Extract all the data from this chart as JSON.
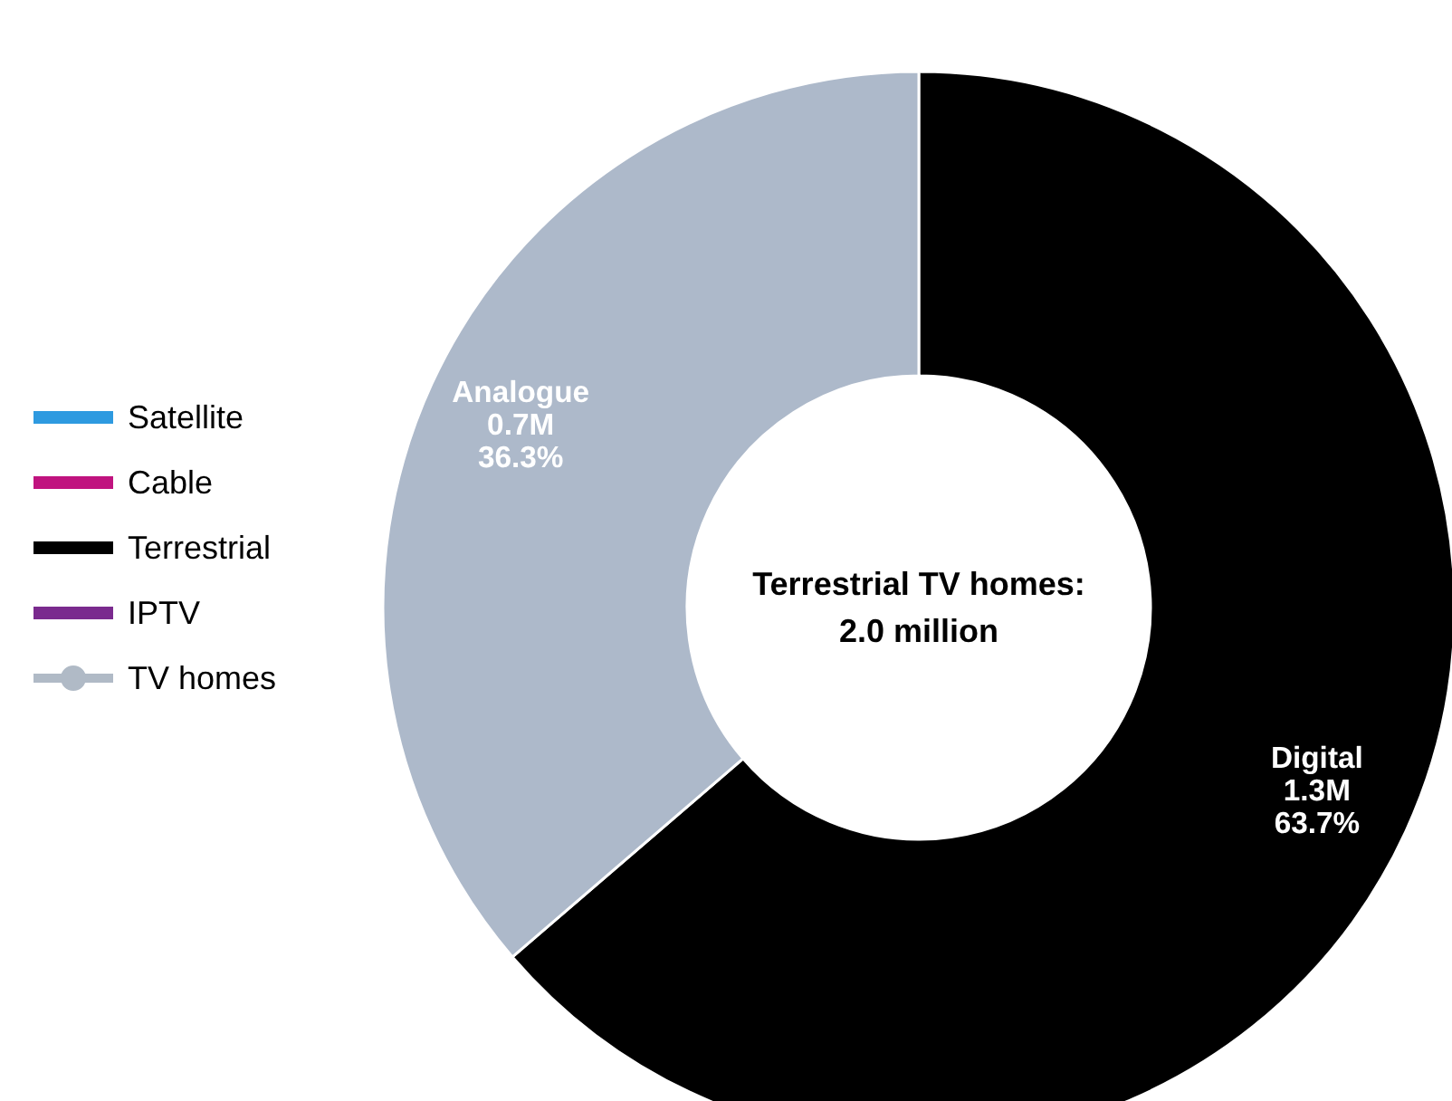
{
  "chart_data": [
    {
      "type": "donut",
      "categories": [
        "Digital",
        "Analogue"
      ],
      "values": [
        63.7,
        36.3
      ],
      "colors": [
        "#000000",
        "#adb9ca"
      ],
      "value_labels": [
        "1.3M\n63.7%",
        "0.7M\n36.3%"
      ],
      "annotations": [
        "Terrestrial TV homes:\n2.0 million"
      ]
    },
    {
      "type": "other",
      "legend": "left",
      "series": [
        {
          "name": "Satellite",
          "color": "#2e9ae0",
          "type": "bar"
        },
        {
          "name": "Cable",
          "color": "#c0137f",
          "type": "bar"
        },
        {
          "name": "Terrestrial",
          "color": "#000000",
          "type": "bar"
        },
        {
          "name": "IPTV",
          "color": "#7a2a8e",
          "type": "bar"
        },
        {
          "name": "TV homes",
          "color": "#b0bac6",
          "type": "line",
          "marker": "circle"
        }
      ]
    }
  ]
}
